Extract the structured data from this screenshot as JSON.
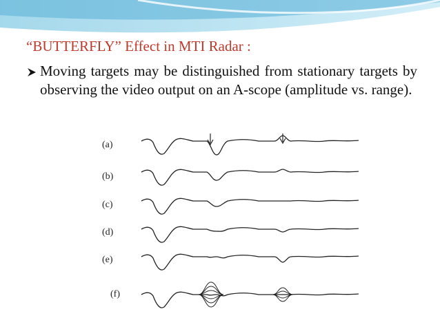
{
  "slide": {
    "title": "“BUTTERFLY” Effect in MTI Radar :",
    "bullet": "Moving targets may be distinguished from stationary targets by observing the video output on an A-scope (amplitude vs. range).",
    "figure": {
      "labels": [
        "(a)",
        "(b)",
        "(c)",
        "(d)",
        "(e)",
        "(f)"
      ]
    }
  }
}
